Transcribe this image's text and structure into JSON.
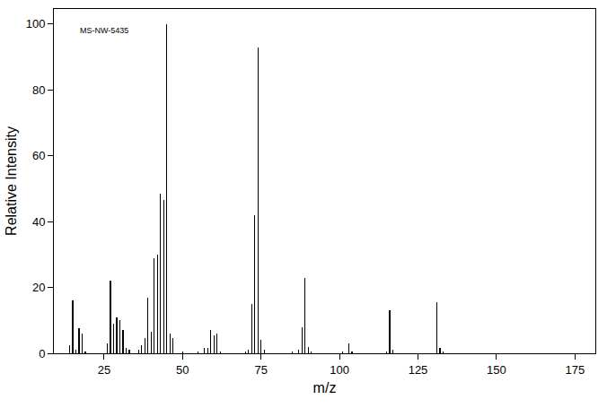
{
  "chart_data": {
    "type": "bar",
    "annotation": "MS-NW-5435",
    "x_label": "m/z",
    "y_label": "Relative Intensity",
    "x": [
      14,
      15,
      16,
      17,
      18,
      19,
      26,
      27,
      28,
      29,
      30,
      31,
      32,
      33,
      36,
      37,
      38,
      39,
      40,
      41,
      42,
      43,
      44,
      45,
      46,
      47,
      50,
      55,
      57,
      58,
      59,
      60,
      61,
      62,
      70,
      71,
      72,
      73,
      74,
      75,
      76,
      85,
      87,
      88,
      89,
      90,
      91,
      101,
      103,
      104,
      115,
      116,
      117,
      131,
      132,
      133
    ],
    "values": [
      2.5,
      16,
      1,
      7.5,
      6,
      0.5,
      3,
      22,
      9,
      11,
      10,
      7,
      1.5,
      1,
      1,
      2.5,
      4.5,
      17,
      6.5,
      29,
      30,
      48.5,
      46.5,
      100,
      6,
      4.5,
      0.5,
      0.5,
      1.5,
      1.5,
      7,
      5.5,
      6,
      0.5,
      0.5,
      1,
      15,
      42,
      93,
      4,
      1,
      0.5,
      1,
      8,
      23,
      2,
      0.5,
      0.5,
      3,
      0.5,
      0.5,
      13,
      1,
      15.5,
      1.5,
      0.5
    ],
    "color": "#000000",
    "xlim": [
      9,
      181.5
    ],
    "xticks": [
      25,
      50,
      75,
      100,
      125,
      150,
      175
    ],
    "ylim": [
      0,
      104.6
    ],
    "yticks": [
      0,
      20,
      40,
      60,
      80,
      100
    ],
    "grid": false
  }
}
